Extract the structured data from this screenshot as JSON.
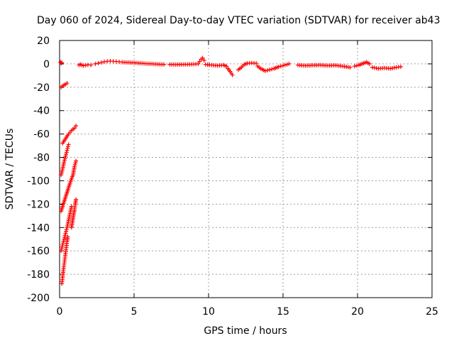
{
  "chart_data": {
    "type": "scatter",
    "title": "Day 060 of 2024, Sidereal Day-to-day VTEC variation (SDTVAR) for receiver ab43",
    "xlabel": "GPS time / hours",
    "ylabel": "SDTVAR / TECUs",
    "xlim": [
      0,
      25
    ],
    "ylim": [
      -200,
      20
    ],
    "xticks": [
      0,
      5,
      10,
      15,
      20,
      25
    ],
    "yticks": [
      20,
      0,
      -20,
      -40,
      -60,
      -80,
      -100,
      -120,
      -140,
      -160,
      -180,
      -200
    ],
    "grid": true,
    "marker": "+",
    "color": "#ff0000",
    "series": [
      {
        "name": "SDTVAR",
        "segments": [
          {
            "x": [
              0.05,
              0.1,
              0.15
            ],
            "y": [
              1.5,
              0.5,
              1.0
            ]
          },
          {
            "x": [
              0.1,
              0.2,
              0.3,
              0.4,
              0.5
            ],
            "y": [
              -20,
              -19,
              -18,
              -17.5,
              -16.5
            ]
          },
          {
            "x": [
              0.2,
              0.4,
              0.6,
              0.8,
              1.0,
              1.1
            ],
            "y": [
              -68,
              -64,
              -60,
              -57,
              -55,
              -53
            ]
          },
          {
            "x": [
              0.1,
              0.2,
              0.3,
              0.4,
              0.5,
              0.6
            ],
            "y": [
              -95,
              -90,
              -84,
              -79,
              -74,
              -69
            ]
          },
          {
            "x": [
              0.1,
              0.3,
              0.5,
              0.7,
              0.9,
              1.0,
              1.1
            ],
            "y": [
              -126,
              -118,
              -110,
              -102,
              -95,
              -88,
              -83
            ]
          },
          {
            "x": [
              0.1,
              0.2,
              0.3,
              0.4,
              0.5,
              0.6,
              0.7,
              0.8
            ],
            "y": [
              -160,
              -155,
              -150,
              -145,
              -140,
              -134,
              -128,
              -122
            ]
          },
          {
            "x": [
              0.8,
              0.9,
              1.0,
              1.05,
              1.1
            ],
            "y": [
              -140,
              -132,
              -125,
              -120,
              -116
            ]
          },
          {
            "x": [
              0.15,
              0.2,
              0.25,
              0.3,
              0.35,
              0.4,
              0.45,
              0.5,
              0.55
            ],
            "y": [
              -188,
              -183,
              -177,
              -172,
              -167,
              -162,
              -157,
              -152,
              -148
            ]
          },
          {
            "x": [
              1.3,
              1.4,
              1.6,
              1.9,
              2.1
            ],
            "y": [
              -1,
              -0.5,
              -1.5,
              -0.8,
              -1.0
            ]
          },
          {
            "x": [
              2.4,
              2.6,
              2.8,
              3.0,
              3.2,
              3.4,
              3.6,
              3.8,
              4.0
            ],
            "y": [
              0,
              0.6,
              1.2,
              1.8,
              2.2,
              2.4,
              2.2,
              2.0,
              1.8
            ]
          },
          {
            "x": [
              4.2,
              4.6,
              5.0,
              5.4,
              5.8,
              6.2,
              6.6,
              7.0
            ],
            "y": [
              1.5,
              1.2,
              1.0,
              0.6,
              0.2,
              0.0,
              -0.3,
              -0.5
            ]
          },
          {
            "x": [
              7.4,
              7.8,
              8.2,
              8.6,
              9.0,
              9.3
            ],
            "y": [
              -0.5,
              -0.6,
              -0.5,
              -0.4,
              -0.3,
              0.0
            ]
          },
          {
            "x": [
              9.4,
              9.5,
              9.6,
              9.7
            ],
            "y": [
              2.0,
              4.0,
              5.0,
              3.0
            ]
          },
          {
            "x": [
              9.8,
              10.2,
              10.6,
              11.0,
              11.2
            ],
            "y": [
              -0.5,
              -1.0,
              -1.5,
              -1.0,
              -2.0
            ]
          },
          {
            "x": [
              11.3,
              11.45,
              11.6
            ],
            "y": [
              -4,
              -6.5,
              -9.5
            ]
          },
          {
            "x": [
              12.0,
              12.2,
              12.4,
              12.6,
              12.9,
              13.2
            ],
            "y": [
              -5,
              -3,
              -0.5,
              0.5,
              0.8,
              0.5
            ]
          },
          {
            "x": [
              13.3,
              13.5,
              13.8,
              14.1,
              14.4,
              14.7,
              15.0,
              15.4
            ],
            "y": [
              -2,
              -4,
              -6,
              -5,
              -4,
              -2.5,
              -1.5,
              0
            ]
          },
          {
            "x": [
              16.0,
              16.5,
              17.0,
              17.5,
              18.0,
              18.5,
              19.0,
              19.5
            ],
            "y": [
              -1,
              -1.5,
              -1.2,
              -1.0,
              -1.5,
              -1.2,
              -2.0,
              -3.0
            ]
          },
          {
            "x": [
              19.8,
              20.1,
              20.4,
              20.6,
              20.8
            ],
            "y": [
              -2.0,
              -1.0,
              0.5,
              1.5,
              0.0
            ]
          },
          {
            "x": [
              21.0,
              21.4,
              21.8,
              22.2,
              22.6,
              22.9
            ],
            "y": [
              -3.0,
              -4.0,
              -3.5,
              -4.0,
              -3.0,
              -2.5
            ]
          }
        ]
      }
    ]
  }
}
